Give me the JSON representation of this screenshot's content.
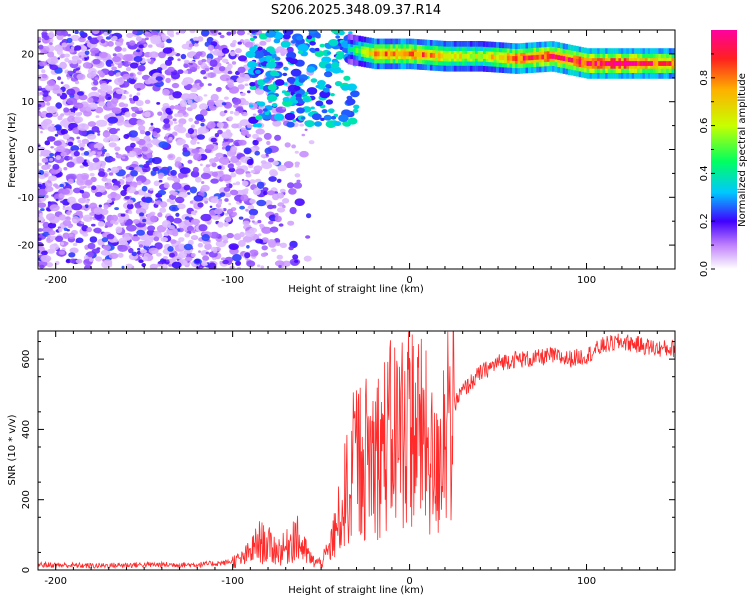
{
  "title": "S206.2025.348.09.37.R14",
  "chart_data": [
    {
      "type": "heatmap",
      "name": "spectrogram",
      "xlabel": "Height of straight line (km)",
      "ylabel": "Frequency (Hz)",
      "xlim": [
        -210,
        150
      ],
      "ylim": [
        -25,
        25
      ],
      "xticks": [
        -200,
        -100,
        0,
        100
      ],
      "yticks": [
        -20,
        -10,
        0,
        10,
        20
      ],
      "colorbar": {
        "label": "Normalized spectral amplitude",
        "range": [
          0,
          1
        ],
        "ticks": [
          "0.0",
          "0.2",
          "0.4",
          "0.6",
          "0.8"
        ],
        "tick_values": [
          0,
          0.2,
          0.4,
          0.6,
          0.8
        ]
      },
      "features": {
        "scatter_region": {
          "x": [
            -210,
            -55
          ],
          "freq": [
            -25,
            25
          ],
          "amplitude": [
            0.05,
            0.25
          ]
        },
        "transition_region": {
          "x": [
            -90,
            -30
          ],
          "freq": [
            5,
            25
          ],
          "amplitude": [
            0.2,
            0.4
          ]
        },
        "carrier_line": {
          "x": [
            -35,
            -20,
            0,
            20,
            40,
            60,
            80,
            100,
            120,
            150
          ],
          "freq": [
            21,
            20,
            20,
            19.5,
            19.5,
            19,
            19.5,
            18,
            18,
            18
          ],
          "amplitude": [
            0.35,
            0.75,
            0.85,
            0.7,
            0.6,
            0.85,
            0.9,
            0.9,
            0.95,
            0.8
          ]
        }
      }
    },
    {
      "type": "line",
      "name": "snr",
      "xlabel": "Height of straight line (km)",
      "ylabel": "SNR (10 * v/v)",
      "xlim": [
        -210,
        150
      ],
      "ylim": [
        0,
        680
      ],
      "xticks": [
        -200,
        -100,
        0,
        100
      ],
      "yticks": [
        0,
        200,
        400,
        600
      ],
      "series": [
        {
          "name": "SNR",
          "color": "#ff2a2a",
          "x": [
            -210,
            -180,
            -150,
            -120,
            -105,
            -95,
            -90,
            -85,
            -80,
            -75,
            -70,
            -65,
            -60,
            -55,
            -50,
            -45,
            -40,
            -35,
            -30,
            -25,
            -20,
            -15,
            -10,
            -5,
            0,
            5,
            10,
            15,
            20,
            25,
            30,
            40,
            50,
            60,
            70,
            80,
            90,
            100,
            110,
            120,
            130,
            140,
            150
          ],
          "y": [
            15,
            12,
            15,
            15,
            20,
            30,
            50,
            80,
            70,
            55,
            60,
            100,
            60,
            25,
            20,
            60,
            140,
            240,
            320,
            320,
            330,
            350,
            380,
            400,
            430,
            400,
            350,
            260,
            440,
            470,
            510,
            560,
            590,
            600,
            600,
            610,
            600,
            610,
            640,
            650,
            640,
            630,
            630
          ]
        }
      ]
    }
  ]
}
